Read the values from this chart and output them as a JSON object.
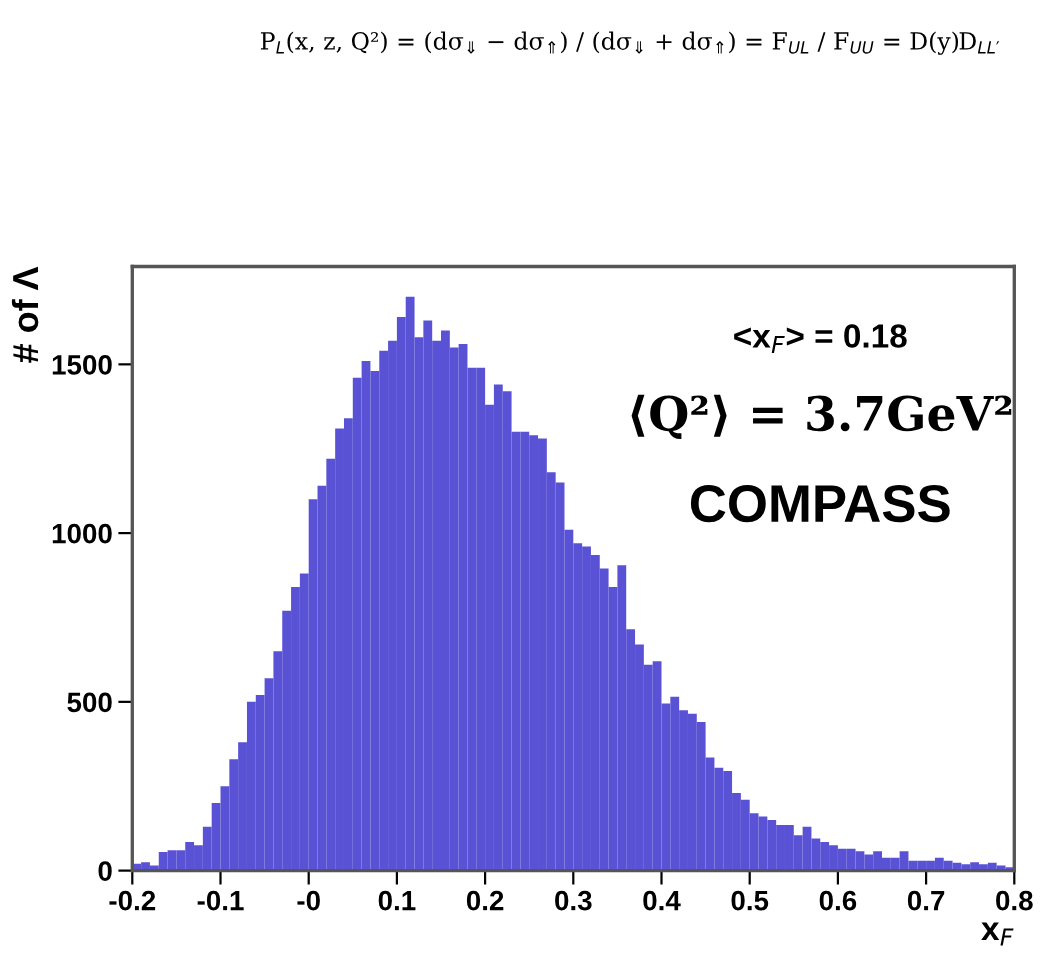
{
  "chart_data": {
    "type": "histogram",
    "xlabel": "x$_{F}$",
    "ylabel": "# of Λ",
    "annotations": [
      "P$_{L}$(x, z, Q²) = (dσ$_{⇓}$ − dσ$_{⇑}$) / (dσ$_{⇓}$ + dσ$_{⇑}$) = F$_{UL}$ / F$_{UU}$ = D(y)D$_{LL′}$",
      "<x$_{F}$> = 0.18",
      "⟨Q²⟩ = 3.7GeV²",
      "COMPASS"
    ],
    "color": "#5a52d5",
    "bins": [
      -0.2,
      -0.19,
      -0.18,
      -0.17,
      -0.16,
      -0.15,
      -0.14,
      -0.13,
      -0.12,
      -0.11,
      -0.1,
      -0.09,
      -0.08,
      -0.07,
      -0.06,
      -0.05,
      -0.04,
      -0.03,
      -0.02,
      -0.01,
      0.0,
      0.01,
      0.02,
      0.03,
      0.04,
      0.05,
      0.06,
      0.07,
      0.08,
      0.09,
      0.1,
      0.11,
      0.12,
      0.13,
      0.14,
      0.15,
      0.16,
      0.17,
      0.18,
      0.19,
      0.2,
      0.21,
      0.22,
      0.23,
      0.24,
      0.25,
      0.26,
      0.27,
      0.28,
      0.29,
      0.3,
      0.31,
      0.32,
      0.33,
      0.34,
      0.35,
      0.36,
      0.37,
      0.38,
      0.39,
      0.4,
      0.41,
      0.42,
      0.43,
      0.44,
      0.45,
      0.46,
      0.47,
      0.48,
      0.49,
      0.5,
      0.51,
      0.52,
      0.53,
      0.54,
      0.55,
      0.56,
      0.57,
      0.58,
      0.59,
      0.6,
      0.61,
      0.62,
      0.63,
      0.64,
      0.65,
      0.66,
      0.67,
      0.68,
      0.69,
      0.7,
      0.71,
      0.72,
      0.73,
      0.74,
      0.75,
      0.76,
      0.77,
      0.78,
      0.79,
      0.8
    ],
    "values": [
      20,
      25,
      15,
      55,
      60,
      60,
      85,
      75,
      130,
      200,
      250,
      330,
      380,
      500,
      520,
      570,
      650,
      770,
      840,
      880,
      1100,
      1140,
      1220,
      1310,
      1340,
      1460,
      1510,
      1480,
      1540,
      1570,
      1640,
      1700,
      1580,
      1630,
      1570,
      1600,
      1550,
      1560,
      1490,
      1490,
      1380,
      1440,
      1420,
      1300,
      1300,
      1290,
      1280,
      1180,
      1150,
      1010,
      970,
      960,
      935,
      895,
      840,
      905,
      715,
      670,
      610,
      620,
      495,
      515,
      475,
      465,
      440,
      335,
      305,
      295,
      230,
      210,
      170,
      160,
      150,
      135,
      135,
      105,
      130,
      95,
      85,
      75,
      65,
      65,
      57,
      48,
      57,
      38,
      38,
      57,
      29,
      29,
      29,
      38,
      29,
      23,
      19,
      25,
      19,
      23,
      15,
      10
    ],
    "xlim": [
      -0.2,
      0.8
    ],
    "xticks": [
      -0.2,
      -0.1,
      {
        "value": 0,
        "label": "-0"
      },
      0.1,
      0.2,
      0.3,
      0.4,
      0.5,
      0.6,
      0.7,
      0.8
    ],
    "ylim": [
      0,
      1790
    ],
    "yticks": [
      0,
      500,
      1000,
      1500
    ],
    "grid": false,
    "legend": false
  }
}
